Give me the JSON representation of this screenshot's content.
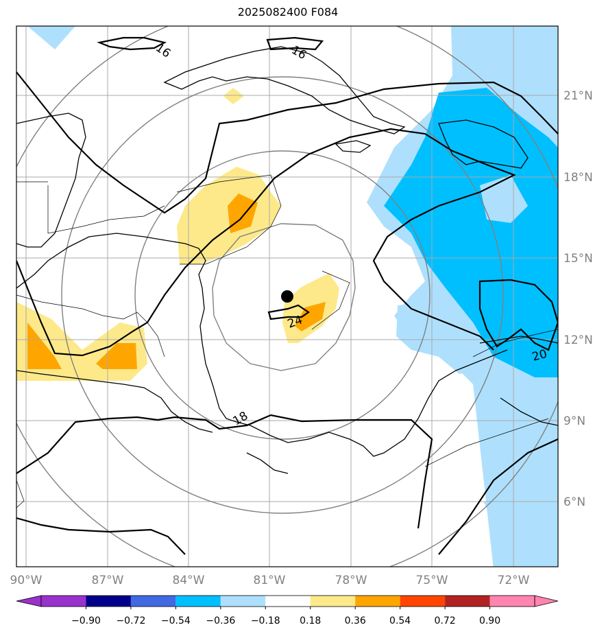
{
  "title": "2025082400 F084",
  "map": {
    "lon_labels": [
      "90°W",
      "87°W",
      "84°W",
      "81°W",
      "78°W",
      "75°W",
      "72°W"
    ],
    "lat_labels": [
      "21°N",
      "18°N",
      "15°N",
      "12°N",
      "9°N",
      "6°N"
    ],
    "contour_labels": [
      "16",
      "16",
      "24",
      "18",
      "20"
    ],
    "storm_center": {
      "lon": -80.3,
      "lat": 13.5
    },
    "colors": {
      "coast": "#000000",
      "grid": "#a9a9a9",
      "rings": "#808080",
      "pos_light": "#fde98a",
      "pos_mid": "#ffa500",
      "neg_light": "#aee0fd",
      "neg_mid": "#00bfff"
    }
  },
  "colorbar": {
    "ticks": [
      "−0.90",
      "−0.72",
      "−0.54",
      "−0.36",
      "−0.18",
      "0.18",
      "0.36",
      "0.54",
      "0.72",
      "0.90"
    ],
    "colors": [
      "#9932cc",
      "#9932cc",
      "#00008b",
      "#4169e1",
      "#00bfff",
      "#aee0fd",
      "#ffffff",
      "#fde98a",
      "#ffa500",
      "#ff4500",
      "#b22222",
      "#ff85b0",
      "#ff85b0"
    ]
  }
}
